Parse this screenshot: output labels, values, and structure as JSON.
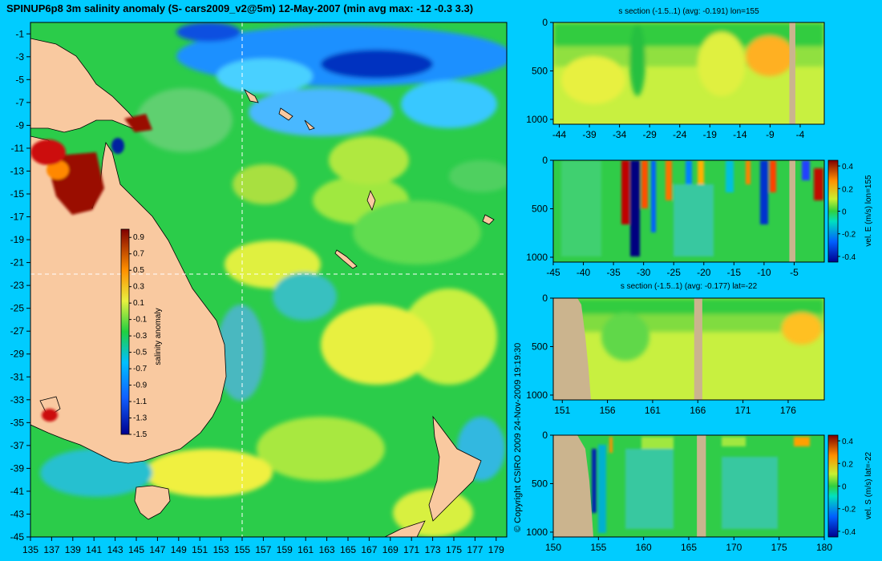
{
  "page": {
    "background": "#00ccff"
  },
  "title": "SPINUP6p8 3m salinity anomaly (S- cars2009_v2@5m) 12-May-2007 (min avg max: -12 -0.3 3.3)",
  "copyright": "© Copyright CSIRO 2009   24-Nov-2009 19:19:30",
  "colors": {
    "land": "#f9c9a0",
    "section_land": "#cbb48e",
    "ocean_base": "#27c94a",
    "coast": "#000000",
    "section_line": "#ffffff"
  },
  "chart_data": [
    {
      "id": "map",
      "type": "heatmap",
      "title": "SPINUP6p8 3m salinity anomaly (S- cars2009_v2@5m) 12-May-2007 (min avg max: -12 -0.3 3.3)",
      "xlim": [
        135,
        180
      ],
      "ylim": [
        -45,
        0
      ],
      "xticks": [
        135,
        137,
        139,
        141,
        143,
        145,
        147,
        149,
        151,
        153,
        155,
        157,
        159,
        161,
        163,
        165,
        167,
        169,
        171,
        173,
        175,
        177,
        179
      ],
      "yticks": [
        -1,
        -3,
        -5,
        -7,
        -9,
        -11,
        -13,
        -15,
        -17,
        -19,
        -21,
        -23,
        -25,
        -27,
        -29,
        -31,
        -33,
        -35,
        -37,
        -39,
        -41,
        -43,
        -45
      ],
      "section_lines": {
        "lon": 155,
        "lat": -22
      },
      "colorbar": {
        "label": "salinity anomaly",
        "ticks": [
          "0.9",
          "0.7",
          "0.5",
          "0.3",
          "0.1",
          "-0.1",
          "-0.3",
          "-0.5",
          "-0.7",
          "-0.9",
          "-1.1",
          "-1.3",
          "-1.5"
        ],
        "range": [
          -1.5,
          1.0
        ]
      },
      "grid": false
    },
    {
      "id": "s-section-lon",
      "type": "heatmap",
      "title": "s section (-1.5..1) (avg: -0.191) lon=155",
      "xlim": [
        -45,
        0
      ],
      "ylim": [
        1050,
        0
      ],
      "xticks": [
        "-44",
        "-39",
        "-34",
        "-29",
        "-24",
        "-19",
        "-14",
        "-9",
        "-4"
      ],
      "xtick_values": [
        -44,
        -39,
        -34,
        -29,
        -24,
        -19,
        -14,
        -9,
        -4
      ],
      "yticks": [
        "0",
        "500",
        "1000"
      ],
      "ytick_values": [
        0,
        500,
        1000
      ],
      "land_bands": [
        [
          -5.8,
          -4.8
        ]
      ]
    },
    {
      "id": "vel-e-section",
      "type": "heatmap",
      "title": "",
      "xlim": [
        -45,
        0
      ],
      "ylim": [
        1050,
        0
      ],
      "xticks": [
        "-45",
        "-40",
        "-35",
        "-30",
        "-25",
        "-20",
        "-15",
        "-10",
        "-5"
      ],
      "xtick_values": [
        -45,
        -40,
        -35,
        -30,
        -25,
        -20,
        -15,
        -10,
        -5
      ],
      "yticks": [
        "0",
        "500",
        "1000"
      ],
      "ytick_values": [
        0,
        500,
        1000
      ],
      "land_bands": [
        [
          -5.8,
          -4.8
        ]
      ],
      "colorbar": {
        "label": "vel. E (m/s) lon=155",
        "ticks": [
          "0.4",
          "0.2",
          "0",
          "-0.2",
          "-0.4"
        ],
        "range": [
          -0.45,
          0.45
        ]
      }
    },
    {
      "id": "s-section-lat",
      "type": "heatmap",
      "title": "s section (-1.5..1) (avg: -0.177) lat=-22",
      "xlim": [
        150,
        180
      ],
      "ylim": [
        1050,
        0
      ],
      "xticks": [
        "151",
        "156",
        "161",
        "166",
        "171",
        "176"
      ],
      "xtick_values": [
        151,
        156,
        161,
        166,
        171,
        176
      ],
      "yticks": [
        "0",
        "500",
        "1000"
      ],
      "ytick_values": [
        0,
        500,
        1000
      ],
      "land_bands": [
        [
          165.6,
          166.5
        ]
      ]
    },
    {
      "id": "vel-s-section",
      "type": "heatmap",
      "title": "",
      "xlim": [
        150,
        180
      ],
      "ylim": [
        1050,
        0
      ],
      "xticks": [
        "150",
        "155",
        "160",
        "165",
        "170",
        "175",
        "180"
      ],
      "xtick_values": [
        150,
        155,
        160,
        165,
        170,
        175,
        180
      ],
      "yticks": [
        "0",
        "500",
        "1000"
      ],
      "ytick_values": [
        0,
        500,
        1000
      ],
      "land_bands": [
        [
          165.9,
          166.9
        ]
      ],
      "colorbar": {
        "label": "vel. S (m/s) lat=-22",
        "ticks": [
          "0.4",
          "0.2",
          "0",
          "-0.2",
          "-0.4"
        ],
        "range": [
          -0.45,
          0.45
        ]
      }
    }
  ]
}
